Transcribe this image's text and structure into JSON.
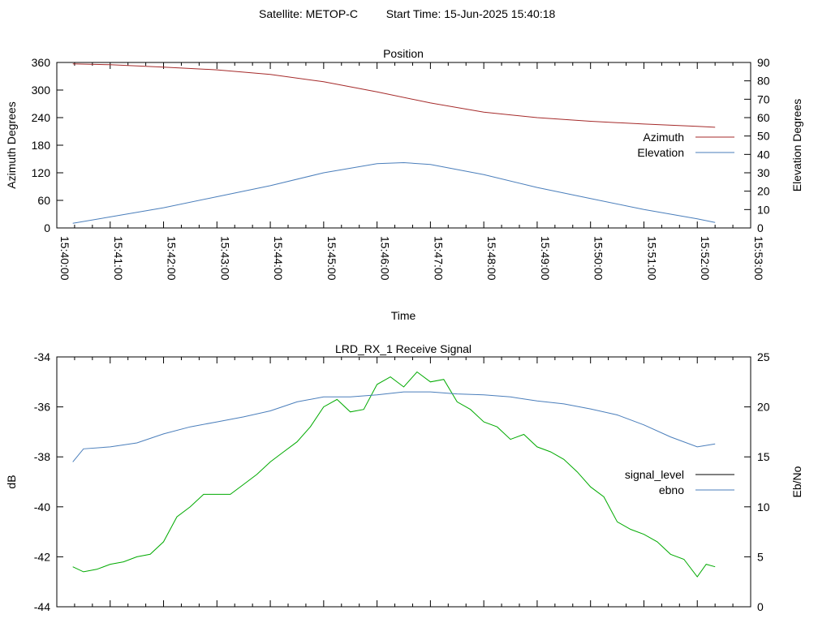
{
  "header": {
    "satellite_label": "Satellite: METOP-C",
    "start_time_label": "Start Time: 15-Jun-2025 15:40:18"
  },
  "chart_data": [
    {
      "type": "line",
      "title": "Position",
      "xlabel": "Time",
      "ylabel": "Azimuth Degrees",
      "y2label": "Elevation Degrees",
      "xlim": [
        "15:40:00",
        "15:53:00"
      ],
      "ylim": [
        0,
        360
      ],
      "y2lim": [
        0,
        90
      ],
      "x_ticks": [
        "15:40:00",
        "15:41:00",
        "15:42:00",
        "15:43:00",
        "15:44:00",
        "15:45:00",
        "15:46:00",
        "15:47:00",
        "15:48:00",
        "15:49:00",
        "15:50:00",
        "15:51:00",
        "15:52:00",
        "15:53:00"
      ],
      "y_ticks": [
        "0",
        "60",
        "120",
        "180",
        "240",
        "300",
        "360"
      ],
      "y2_ticks": [
        "0",
        "10",
        "20",
        "30",
        "40",
        "50",
        "60",
        "70",
        "80",
        "90"
      ],
      "legend": "right",
      "grid": false,
      "series": [
        {
          "name": "Azimuth",
          "axis": "y",
          "color": "#a52a2a",
          "x": [
            "15:40:18",
            "15:41:00",
            "15:42:00",
            "15:43:00",
            "15:44:00",
            "15:45:00",
            "15:46:00",
            "15:47:00",
            "15:48:00",
            "15:49:00",
            "15:50:00",
            "15:51:00",
            "15:52:00",
            "15:52:20"
          ],
          "values": [
            357,
            355,
            350,
            344,
            334,
            318,
            296,
            272,
            252,
            240,
            232,
            226,
            221,
            219
          ]
        },
        {
          "name": "Elevation",
          "axis": "y2",
          "color": "#4a7ebb",
          "x": [
            "15:40:18",
            "15:41:00",
            "15:42:00",
            "15:43:00",
            "15:44:00",
            "15:45:00",
            "15:46:00",
            "15:46:30",
            "15:47:00",
            "15:48:00",
            "15:49:00",
            "15:50:00",
            "15:51:00",
            "15:52:00",
            "15:52:20"
          ],
          "values": [
            2.5,
            6,
            11,
            17,
            23,
            30,
            35,
            35.5,
            34.5,
            29,
            22,
            16,
            10,
            5,
            3
          ]
        }
      ]
    },
    {
      "type": "line",
      "title": "LRD_RX_1 Receive Signal",
      "ylabel": "dB",
      "y2label": "Eb/No",
      "ylim": [
        -44,
        -34
      ],
      "y2lim": [
        0,
        25
      ],
      "y_ticks": [
        "-44",
        "-42",
        "-40",
        "-38",
        "-36",
        "-34"
      ],
      "y2_ticks": [
        "0",
        "5",
        "10",
        "15",
        "20",
        "25"
      ],
      "legend": "right",
      "grid": false,
      "series": [
        {
          "name": "signal_level",
          "axis": "y",
          "color": "#00aa00",
          "legend_color": "#000000",
          "x": [
            "15:40:18",
            "15:40:30",
            "15:40:45",
            "15:41:00",
            "15:41:15",
            "15:41:30",
            "15:41:45",
            "15:42:00",
            "15:42:15",
            "15:42:30",
            "15:42:45",
            "15:43:00",
            "15:43:15",
            "15:43:30",
            "15:43:45",
            "15:44:00",
            "15:44:15",
            "15:44:30",
            "15:44:45",
            "15:45:00",
            "15:45:15",
            "15:45:30",
            "15:45:45",
            "15:46:00",
            "15:46:15",
            "15:46:30",
            "15:46:45",
            "15:47:00",
            "15:47:15",
            "15:47:30",
            "15:47:45",
            "15:48:00",
            "15:48:15",
            "15:48:30",
            "15:48:45",
            "15:49:00",
            "15:49:15",
            "15:49:30",
            "15:49:45",
            "15:50:00",
            "15:50:15",
            "15:50:30",
            "15:50:45",
            "15:51:00",
            "15:51:15",
            "15:51:30",
            "15:51:45",
            "15:52:00",
            "15:52:10",
            "15:52:20"
          ],
          "values": [
            -42.4,
            -42.6,
            -42.5,
            -42.3,
            -42.2,
            -42.0,
            -41.9,
            -41.4,
            -40.4,
            -40.0,
            -39.5,
            -39.5,
            -39.5,
            -39.1,
            -38.7,
            -38.2,
            -37.8,
            -37.4,
            -36.8,
            -36.0,
            -35.7,
            -36.2,
            -36.1,
            -35.1,
            -34.8,
            -35.2,
            -34.6,
            -35.0,
            -34.9,
            -35.8,
            -36.1,
            -36.6,
            -36.8,
            -37.3,
            -37.1,
            -37.6,
            -37.8,
            -38.1,
            -38.6,
            -39.2,
            -39.6,
            -40.6,
            -40.9,
            -41.1,
            -41.4,
            -41.9,
            -42.1,
            -42.8,
            -42.3,
            -42.4
          ]
        },
        {
          "name": "ebno",
          "axis": "y2",
          "color": "#4a7ebb",
          "x": [
            "15:40:18",
            "15:40:30",
            "15:41:00",
            "15:41:30",
            "15:42:00",
            "15:42:30",
            "15:43:00",
            "15:43:30",
            "15:44:00",
            "15:44:30",
            "15:45:00",
            "15:45:30",
            "15:46:00",
            "15:46:30",
            "15:47:00",
            "15:47:30",
            "15:48:00",
            "15:48:30",
            "15:49:00",
            "15:49:30",
            "15:50:00",
            "15:50:30",
            "15:51:00",
            "15:51:30",
            "15:52:00",
            "15:52:20"
          ],
          "values": [
            14.5,
            15.8,
            16,
            16.4,
            17.3,
            18,
            18.5,
            19,
            19.6,
            20.5,
            21,
            21,
            21.2,
            21.5,
            21.5,
            21.3,
            21.2,
            21.0,
            20.6,
            20.3,
            19.8,
            19.2,
            18.2,
            17,
            16,
            16.3
          ]
        }
      ]
    }
  ]
}
